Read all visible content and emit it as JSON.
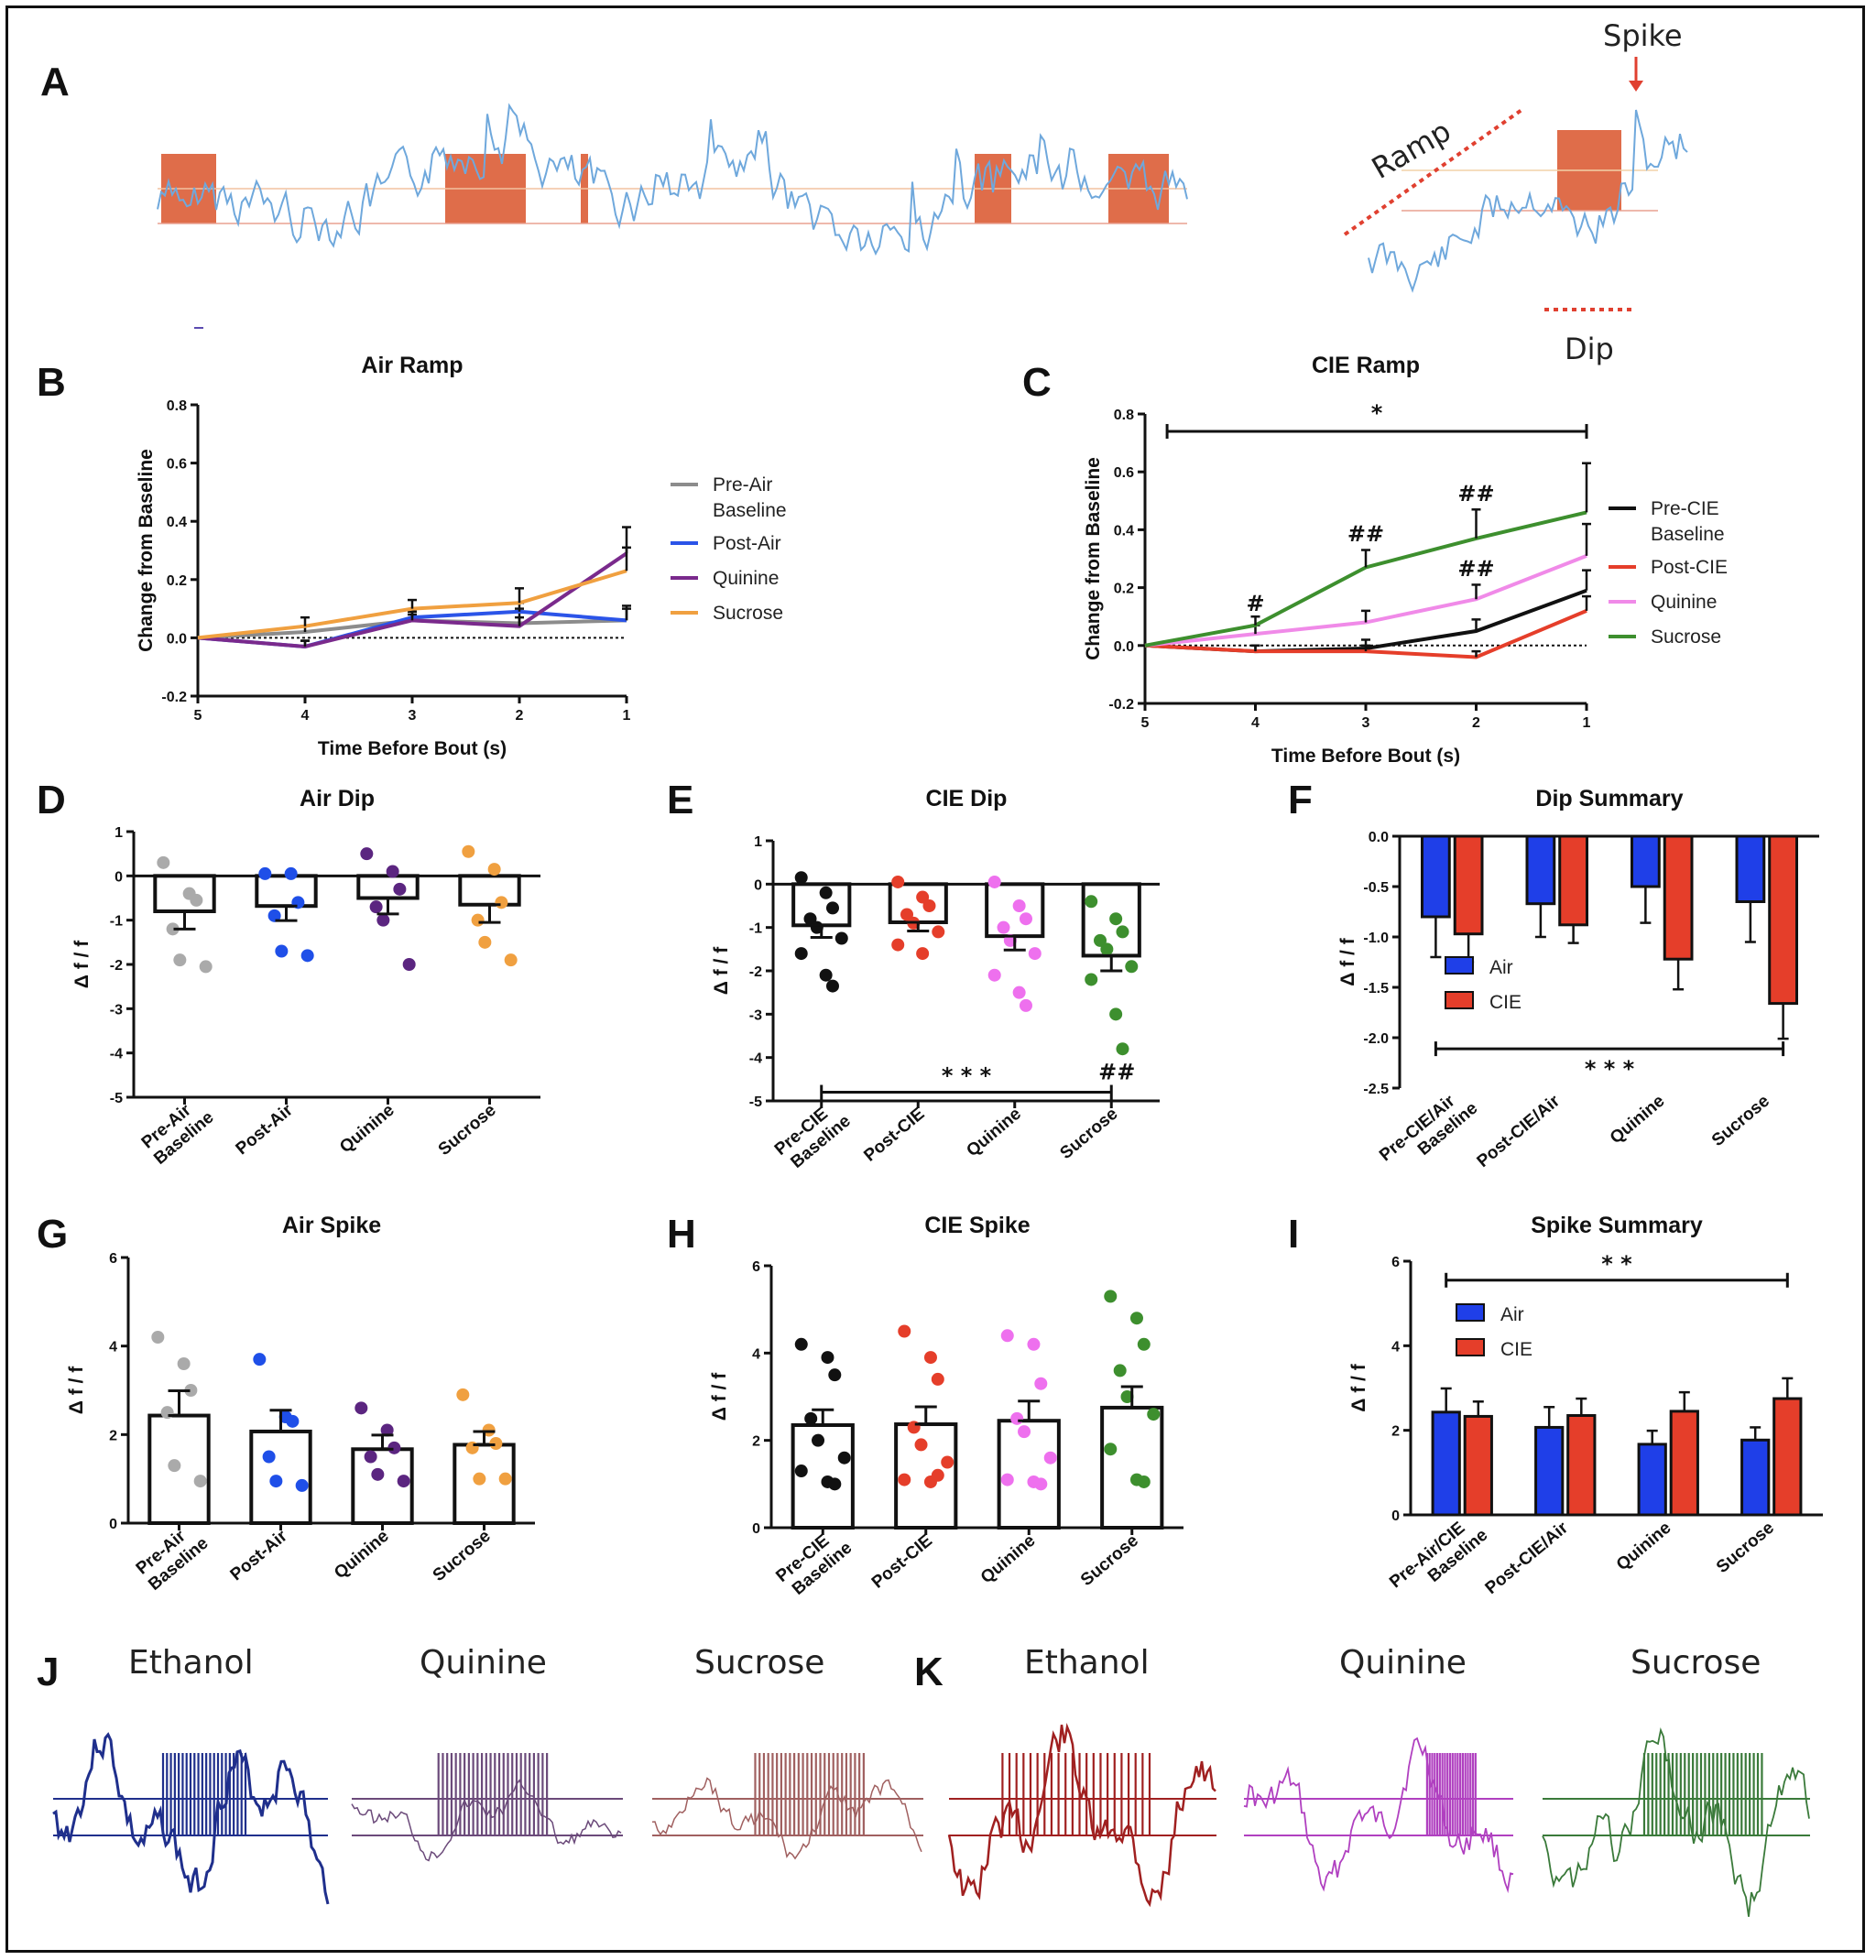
{
  "labels": {
    "A": "A",
    "B": "B",
    "C": "C",
    "D": "D",
    "E": "E",
    "F": "F",
    "G": "G",
    "H": "H",
    "I": "I",
    "J": "J",
    "K": "K"
  },
  "panelA": {
    "ramp": "Ramp",
    "spike": "Spike",
    "dip": "Dip"
  },
  "traces": {
    "J": [
      "Ethanol",
      "Quinine",
      "Sucrose"
    ],
    "K": [
      "Ethanol",
      "Quinine",
      "Sucrose"
    ],
    "colors": {
      "J": [
        "#1f2f8c",
        "#6b4a7a",
        "#a06060"
      ],
      "K": [
        "#a02020",
        "#b040c0",
        "#3a7a3a"
      ]
    }
  },
  "chart_data": [
    {
      "id": "B",
      "type": "line",
      "title": "Air Ramp",
      "xlabel": "Time Before Bout (s)",
      "ylabel": "Change from Baseline",
      "x": [
        5,
        4,
        3,
        2,
        1
      ],
      "xticks": [
        "5",
        "4",
        "3",
        "2",
        "1"
      ],
      "ylim": [
        -0.2,
        0.8
      ],
      "yticks": [
        "-0.2",
        "0.0",
        "0.2",
        "0.4",
        "0.6",
        "0.8"
      ],
      "dash_zero": true,
      "series": [
        {
          "name": "Pre-Air Baseline",
          "color": "#8c8c8c",
          "values": [
            0,
            0.02,
            0.06,
            0.05,
            0.06
          ],
          "err": [
            0,
            0.02,
            0.02,
            0.05,
            0.05
          ]
        },
        {
          "name": "Post-Air",
          "color": "#2b54e8",
          "values": [
            0,
            -0.03,
            0.07,
            0.09,
            0.06
          ],
          "err": [
            0,
            0.02,
            0.02,
            0.03,
            0.04
          ]
        },
        {
          "name": "Quinine",
          "color": "#7a2a8c",
          "values": [
            0,
            -0.03,
            0.06,
            0.04,
            0.29
          ],
          "err": [
            0,
            0.02,
            0.03,
            0.03,
            0.09
          ]
        },
        {
          "name": "Sucrose",
          "color": "#f0a040",
          "values": [
            0,
            0.04,
            0.1,
            0.12,
            0.23
          ],
          "err": [
            0,
            0.03,
            0.03,
            0.05,
            0.08
          ]
        }
      ],
      "legend": [
        [
          "Pre-Air",
          "Baseline"
        ],
        [
          "Post-Air"
        ],
        [
          "Quinine"
        ],
        [
          "Sucrose"
        ]
      ],
      "annotations": []
    },
    {
      "id": "C",
      "type": "line",
      "title": "CIE Ramp",
      "xlabel": "Time Before Bout (s)",
      "ylabel": "Change from Baseline",
      "x": [
        5,
        4,
        3,
        2,
        1
      ],
      "xticks": [
        "5",
        "4",
        "3",
        "2",
        "1"
      ],
      "ylim": [
        -0.2,
        0.8
      ],
      "yticks": [
        "-0.2",
        "0.0",
        "0.2",
        "0.4",
        "0.6",
        "0.8"
      ],
      "dash_zero": true,
      "series": [
        {
          "name": "Pre-CIE Baseline",
          "color": "#111111",
          "values": [
            0,
            -0.02,
            -0.01,
            0.05,
            0.19
          ],
          "err": [
            0,
            0.02,
            0.03,
            0.04,
            0.07
          ]
        },
        {
          "name": "Post-CIE",
          "color": "#e53e2a",
          "values": [
            0,
            -0.02,
            -0.02,
            -0.04,
            0.12
          ],
          "err": [
            0,
            0.02,
            0.02,
            0.02,
            0.05
          ]
        },
        {
          "name": "Quinine",
          "color": "#f08ae8",
          "values": [
            0,
            0.04,
            0.08,
            0.16,
            0.31
          ],
          "err": [
            0,
            0.03,
            0.04,
            0.05,
            0.11
          ]
        },
        {
          "name": "Sucrose",
          "color": "#3d8f2e",
          "values": [
            0,
            0.07,
            0.27,
            0.37,
            0.46
          ],
          "err": [
            0,
            0.03,
            0.06,
            0.1,
            0.17
          ]
        }
      ],
      "legend": [
        [
          "Pre-CIE",
          "Baseline"
        ],
        [
          "Post-CIE"
        ],
        [
          "Quinine"
        ],
        [
          "Sucrose"
        ]
      ],
      "annotations": [
        {
          "text": "*",
          "x1": 4.8,
          "x2": 1,
          "y": 0.74
        },
        {
          "text": "#",
          "x": 4,
          "y": 0.12
        },
        {
          "text": "##",
          "x": 3,
          "y": 0.36
        },
        {
          "text": "##",
          "x": 2,
          "y": 0.5
        },
        {
          "text": "##",
          "x": 2,
          "y": 0.24
        }
      ]
    },
    {
      "id": "D",
      "type": "bar",
      "title": "Air Dip",
      "ylabel": "Δ f / f",
      "ylim": [
        -5,
        1
      ],
      "yticks": [
        "-5",
        "-4",
        "-3",
        "-2",
        "-1",
        "0",
        "1"
      ],
      "dash_zero": false,
      "categories": [
        "Pre-Air Baseline",
        "Post-Air",
        "Quinine",
        "Sucrose"
      ],
      "xticklines": [
        [
          "Pre-Air",
          "Baseline"
        ],
        [
          "Post-Air"
        ],
        [
          "Quinine"
        ],
        [
          "Sucrose"
        ]
      ],
      "values": [
        -0.8,
        -0.68,
        -0.5,
        -0.65
      ],
      "err": [
        0.4,
        0.33,
        0.36,
        0.4
      ],
      "colors": [
        "#aaaaaa",
        "#1f4fe8",
        "#5b2580",
        "#f0a040"
      ],
      "points": [
        [
          0.3,
          -0.4,
          -0.55,
          -1.2,
          -1.9,
          -2.05
        ],
        [
          0.05,
          0.05,
          -0.6,
          -0.9,
          -1.7,
          -1.8
        ],
        [
          0.5,
          0.1,
          -0.3,
          -0.7,
          -1.0,
          -2.0
        ],
        [
          0.55,
          0.15,
          -0.6,
          -1.0,
          -1.5,
          -1.9
        ]
      ],
      "annotations": []
    },
    {
      "id": "E",
      "type": "bar",
      "title": "CIE Dip",
      "ylabel": "Δ f / f",
      "ylim": [
        -5,
        1
      ],
      "yticks": [
        "-5",
        "-4",
        "-3",
        "-2",
        "-1",
        "0",
        "1"
      ],
      "dash_zero": true,
      "categories": [
        "Pre-CIE Baseline",
        "Post-CIE",
        "Quinine",
        "Sucrose"
      ],
      "xticklines": [
        [
          "Pre-CIE",
          "Baseline"
        ],
        [
          "Post-CIE"
        ],
        [
          "Quinine"
        ],
        [
          "Sucrose"
        ]
      ],
      "values": [
        -0.95,
        -0.88,
        -1.2,
        -1.65
      ],
      "err": [
        0.28,
        0.2,
        0.32,
        0.35
      ],
      "colors": [
        "#111111",
        "#e53e2a",
        "#ee70ee",
        "#3d8f2e"
      ],
      "points": [
        [
          0.15,
          -0.2,
          -0.55,
          -0.8,
          -1.0,
          -1.25,
          -1.6,
          -2.1,
          -2.35
        ],
        [
          0.05,
          -0.3,
          -0.5,
          -0.7,
          -0.9,
          -1.1,
          -1.4,
          -1.6
        ],
        [
          0.05,
          -0.5,
          -0.8,
          -1.0,
          -1.3,
          -1.6,
          -2.1,
          -2.5,
          -2.8
        ],
        [
          -0.4,
          -0.8,
          -1.1,
          -1.3,
          -1.5,
          -1.9,
          -2.2,
          -3.0,
          -3.8
        ]
      ],
      "annotations": [
        {
          "text": "* * *",
          "x1": 0,
          "x2": 3,
          "y": -4.8
        },
        {
          "text": "##",
          "cat": 3,
          "y": -4.5
        }
      ]
    },
    {
      "id": "F",
      "type": "grouped-bar",
      "title": "Dip Summary",
      "ylabel": "Δ f / f",
      "ylim": [
        -2.5,
        0
      ],
      "yticks": [
        "-2.5",
        "-2.0",
        "-1.5",
        "-1.0",
        "-0.5",
        "0.0"
      ],
      "categories": [
        "Pre-CIE/Air Baseline",
        "Post-CIE/Air",
        "Quinine",
        "Sucrose"
      ],
      "xticklines": [
        [
          "Pre-CIE/Air",
          "Baseline"
        ],
        [
          "Post-CIE/Air"
        ],
        [
          "Quinine"
        ],
        [
          "Sucrose"
        ]
      ],
      "series": [
        {
          "name": "Air",
          "color": "#1f3fe8",
          "values": [
            -0.8,
            -0.67,
            -0.5,
            -0.65
          ],
          "err": [
            0.4,
            0.33,
            0.36,
            0.4
          ]
        },
        {
          "name": "CIE",
          "color": "#e53e2a",
          "values": [
            -0.97,
            -0.88,
            -1.22,
            -1.66
          ],
          "err": [
            0.28,
            0.18,
            0.3,
            0.35
          ]
        }
      ],
      "annotations": [
        {
          "text": "* * *",
          "x1": 0,
          "x2": 3,
          "y": -2.11
        }
      ]
    },
    {
      "id": "G",
      "type": "bar",
      "title": "Air Spike",
      "ylabel": "Δ f / f",
      "ylim": [
        0,
        6
      ],
      "yticks": [
        "0",
        "2",
        "4",
        "6"
      ],
      "dash_zero": false,
      "categories": [
        "Pre-Air Baseline",
        "Post-Air",
        "Quinine",
        "Sucrose"
      ],
      "xticklines": [
        [
          "Pre-Air",
          "Baseline"
        ],
        [
          "Post-Air"
        ],
        [
          "Quinine"
        ],
        [
          "Sucrose"
        ]
      ],
      "values": [
        2.43,
        2.07,
        1.67,
        1.77
      ],
      "err": [
        0.56,
        0.48,
        0.32,
        0.3
      ],
      "colors": [
        "#aaaaaa",
        "#1f4fe8",
        "#5b2580",
        "#f0a040"
      ],
      "points": [
        [
          4.2,
          3.6,
          3.0,
          2.5,
          1.3,
          0.95
        ],
        [
          3.7,
          2.4,
          2.3,
          1.5,
          0.95,
          0.85
        ],
        [
          2.6,
          2.1,
          1.7,
          1.5,
          1.1,
          0.95
        ],
        [
          2.9,
          2.1,
          1.8,
          1.7,
          1.0,
          1.0
        ]
      ],
      "annotations": []
    },
    {
      "id": "H",
      "type": "bar",
      "title": "CIE Spike",
      "ylabel": "Δ f / f",
      "ylim": [
        0,
        6
      ],
      "yticks": [
        "0",
        "2",
        "4",
        "6"
      ],
      "dash_zero": false,
      "categories": [
        "Pre-CIE Baseline",
        "Post-CIE",
        "Quinine",
        "Sucrose"
      ],
      "xticklines": [
        [
          "Pre-CIE",
          "Baseline"
        ],
        [
          "Post-CIE"
        ],
        [
          "Quinine"
        ],
        [
          "Sucrose"
        ]
      ],
      "values": [
        2.35,
        2.37,
        2.45,
        2.75
      ],
      "err": [
        0.35,
        0.4,
        0.45,
        0.48
      ],
      "colors": [
        "#111111",
        "#e53e2a",
        "#ee70ee",
        "#3d8f2e"
      ],
      "points": [
        [
          4.2,
          3.9,
          3.5,
          2.5,
          2.0,
          1.6,
          1.3,
          1.05,
          1.0
        ],
        [
          4.5,
          3.9,
          3.4,
          2.3,
          1.9,
          1.5,
          1.1,
          1.05,
          1.2
        ],
        [
          4.4,
          4.2,
          3.3,
          2.5,
          2.2,
          1.6,
          1.1,
          1.05,
          1.0
        ],
        [
          5.3,
          4.8,
          4.2,
          3.6,
          3.0,
          2.6,
          1.8,
          1.1,
          1.05
        ]
      ],
      "annotations": []
    },
    {
      "id": "I",
      "type": "grouped-bar",
      "title": "Spike Summary",
      "ylabel": "Δ f / f",
      "ylim": [
        0,
        6
      ],
      "yticks": [
        "0",
        "2",
        "4",
        "6"
      ],
      "categories": [
        "Pre-Air/CIE Baseline",
        "Post-CIE/Air",
        "Quinine",
        "Sucrose"
      ],
      "xticklines": [
        [
          "Pre-Air/CIE",
          "Baseline"
        ],
        [
          "Post-CIE/Air"
        ],
        [
          "Quinine"
        ],
        [
          "Sucrose"
        ]
      ],
      "series": [
        {
          "name": "Air",
          "color": "#1f3fe8",
          "values": [
            2.43,
            2.07,
            1.67,
            1.77
          ],
          "err": [
            0.56,
            0.48,
            0.32,
            0.3
          ]
        },
        {
          "name": "CIE",
          "color": "#e53e2a",
          "values": [
            2.33,
            2.35,
            2.45,
            2.75
          ],
          "err": [
            0.35,
            0.4,
            0.45,
            0.48
          ]
        }
      ],
      "annotations": [
        {
          "text": "* *",
          "x1": 0,
          "x2": 3,
          "y": 5.55
        }
      ]
    }
  ]
}
